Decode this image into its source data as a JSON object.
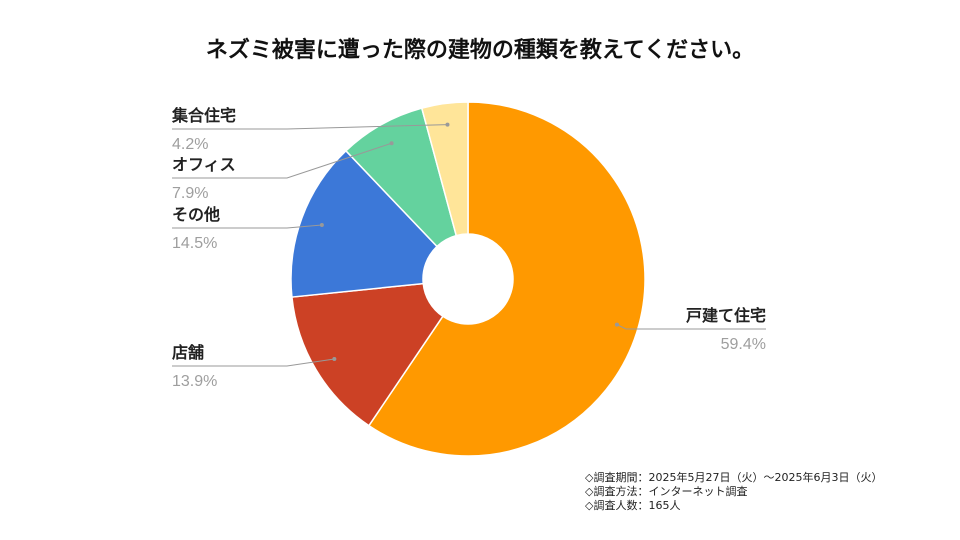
{
  "chart_data": {
    "type": "pie",
    "title": "ネズミ被害に遭った際の建物の種類を教えてください。",
    "donut": true,
    "slices": [
      {
        "label": "戸建て住宅",
        "value": 59.4,
        "value_label": "59.4%",
        "color": "#FF9900"
      },
      {
        "label": "店舗",
        "value": 13.9,
        "value_label": "13.9%",
        "color": "#CC4125"
      },
      {
        "label": "その他",
        "value": 14.5,
        "value_label": "14.5%",
        "color": "#3C78D8"
      },
      {
        "label": "オフィス",
        "value": 7.9,
        "value_label": "7.9%",
        "color": "#64D29E"
      },
      {
        "label": "集合住宅",
        "value": 4.2,
        "value_label": "4.2%",
        "color": "#FFE599"
      }
    ]
  },
  "notes": [
    "◇調査期間：2025年5月27日（火）〜2025年6月3日（火）",
    "◇調査方法：インターネット調査",
    "◇調査人数：165人"
  ]
}
